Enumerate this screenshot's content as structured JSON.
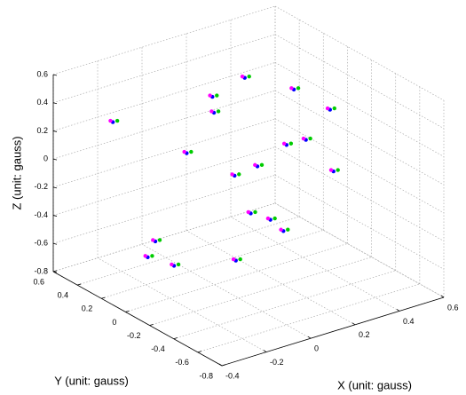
{
  "chart_data": {
    "type": "scatter3d",
    "xlabel": "X (unit: gauss)",
    "ylabel": "Y (unit: gauss)",
    "zlabel": "Z (unit: gauss)",
    "xlim": [
      -0.4,
      0.6
    ],
    "ylim": [
      -0.8,
      0.6
    ],
    "zlim": [
      -0.8,
      0.6
    ],
    "xticks": [
      -0.4,
      -0.2,
      0,
      0.2,
      0.4,
      0.6
    ],
    "yticks": [
      -0.8,
      -0.6,
      -0.4,
      -0.2,
      0,
      0.2,
      0.4,
      0.6
    ],
    "zticks": [
      -0.8,
      -0.6,
      -0.4,
      -0.2,
      0,
      0.2,
      0.4,
      0.6
    ],
    "grid": true,
    "series": [
      {
        "color": "#0000ff",
        "x": [
          -0.24,
          -0.07,
          0.1,
          -0.11,
          0.3,
          0.25,
          0.25,
          0.38,
          0.25,
          -0.18,
          0.14,
          0.32,
          0.11,
          0.09,
          0.04,
          -0.32,
          -0.3,
          -0.29,
          -0.12
        ],
        "y": [
          0.4,
          0.1,
          0.2,
          -0.2,
          0.3,
          -0.2,
          -0.5,
          0.1,
          -0.3,
          -0.5,
          -0.1,
          -0.4,
          -0.1,
          -0.3,
          -0.5,
          -0.1,
          0,
          -0.2,
          -0.4
        ],
        "z": [
          0.28,
          0.12,
          0.39,
          0.57,
          0.38,
          0.56,
          0.56,
          -0.04,
          0.25,
          0.3,
          0.02,
          0.04,
          -0.3,
          -0.24,
          -0.2,
          -0.29,
          -0.46,
          -0.43,
          -0.38
        ]
      },
      {
        "color": "#00cc00",
        "x": [
          -0.22,
          -0.05,
          0.12,
          -0.09,
          0.32,
          0.27,
          0.27,
          0.4,
          0.27,
          -0.16,
          0.16,
          0.34,
          0.13,
          0.11,
          0.06,
          -0.3,
          -0.28,
          -0.27,
          -0.1
        ],
        "y": [
          0.4,
          0.1,
          0.2,
          -0.2,
          0.3,
          -0.2,
          -0.5,
          0.1,
          -0.3,
          -0.5,
          -0.1,
          -0.4,
          -0.1,
          -0.3,
          -0.5,
          -0.1,
          0,
          -0.2,
          -0.4
        ],
        "z": [
          0.28,
          0.12,
          0.39,
          0.57,
          0.38,
          0.56,
          0.56,
          -0.04,
          0.25,
          0.3,
          0.02,
          0.04,
          -0.3,
          -0.24,
          -0.2,
          -0.29,
          -0.46,
          -0.43,
          -0.38
        ]
      },
      {
        "color": "#ff00ff",
        "x": [
          -0.24,
          -0.07,
          0.1,
          -0.11,
          0.3,
          0.25,
          0.25,
          0.38,
          0.25,
          -0.18,
          0.14,
          0.32,
          0.11,
          0.09,
          0.04,
          -0.32,
          -0.3,
          -0.29,
          -0.12
        ],
        "y": [
          0.42,
          0.12,
          0.22,
          -0.18,
          0.32,
          -0.18,
          -0.48,
          0.12,
          -0.28,
          -0.48,
          -0.08,
          -0.38,
          -0.08,
          -0.28,
          -0.48,
          -0.08,
          0.02,
          -0.18,
          -0.38
        ],
        "z": [
          0.28,
          0.12,
          0.39,
          0.57,
          0.38,
          0.56,
          0.56,
          -0.04,
          0.25,
          0.3,
          0.02,
          0.04,
          -0.3,
          -0.24,
          -0.2,
          -0.29,
          -0.46,
          -0.43,
          -0.38
        ]
      }
    ]
  }
}
